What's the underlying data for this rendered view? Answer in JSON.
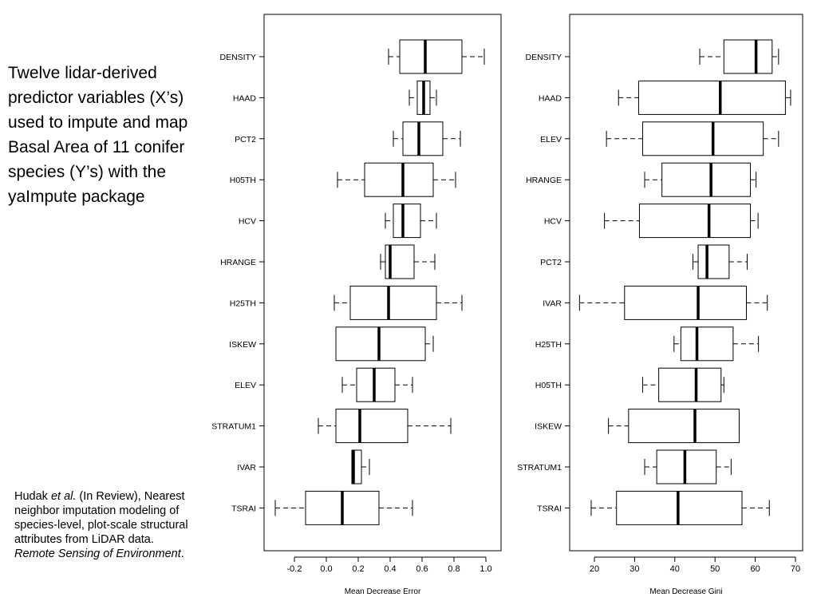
{
  "description": {
    "text": "Twelve lidar-derived predictor variables (X’s) used to impute and map Basal Area of 11 conifer species (Y’s) with the yaImpute package"
  },
  "citation": {
    "authors": "Hudak",
    "etal": "et al.",
    "status": " (In Review), Nearest neighbor imputation modeling of species-level, plot-scale structural attributes from LiDAR data.",
    "journal": "Remote Sensing of Environment",
    "end": "."
  },
  "chart_data": [
    {
      "type": "boxplot",
      "orientation": "horizontal",
      "xlabel": "Mean Decrease Error",
      "xlim": [
        -0.35,
        1.0
      ],
      "xticks": [
        "-0.2",
        "0.0",
        "0.2",
        "0.4",
        "0.6",
        "0.8",
        "1.0"
      ],
      "xtick_values": [
        -0.2,
        0.0,
        0.2,
        0.4,
        0.6,
        0.8,
        1.0
      ],
      "series": [
        {
          "label": "DENSITY",
          "min": 0.39,
          "q1": 0.46,
          "median": 0.62,
          "q3": 0.85,
          "max": 0.99
        },
        {
          "label": "HAAD",
          "min": 0.52,
          "q1": 0.57,
          "median": 0.61,
          "q3": 0.65,
          "max": 0.69
        },
        {
          "label": "PCT2",
          "min": 0.42,
          "q1": 0.48,
          "median": 0.58,
          "q3": 0.73,
          "max": 0.84
        },
        {
          "label": "H05TH",
          "min": 0.07,
          "q1": 0.24,
          "median": 0.48,
          "q3": 0.67,
          "max": 0.81
        },
        {
          "label": "HCV",
          "min": 0.37,
          "q1": 0.42,
          "median": 0.48,
          "q3": 0.59,
          "max": 0.69
        },
        {
          "label": "HRANGE",
          "min": 0.34,
          "q1": 0.37,
          "median": 0.4,
          "q3": 0.55,
          "max": 0.68
        },
        {
          "label": "H25TH",
          "min": 0.05,
          "q1": 0.15,
          "median": 0.39,
          "q3": 0.69,
          "max": 0.85
        },
        {
          "label": "ISKEW",
          "min": 0.06,
          "q1": 0.06,
          "median": 0.33,
          "q3": 0.62,
          "max": 0.67
        },
        {
          "label": "ELEV",
          "min": 0.1,
          "q1": 0.19,
          "median": 0.3,
          "q3": 0.43,
          "max": 0.54
        },
        {
          "label": "STRATUM1",
          "min": -0.05,
          "q1": 0.06,
          "median": 0.21,
          "q3": 0.51,
          "max": 0.78
        },
        {
          "label": "IVAR",
          "min": 0.16,
          "q1": 0.16,
          "median": 0.17,
          "q3": 0.22,
          "max": 0.27
        },
        {
          "label": "TSRAI",
          "min": -0.32,
          "q1": -0.13,
          "median": 0.1,
          "q3": 0.33,
          "max": 0.54
        }
      ]
    },
    {
      "type": "boxplot",
      "orientation": "horizontal",
      "xlabel": "Mean Decrease Gini",
      "xlim": [
        15,
        70
      ],
      "xticks": [
        "20",
        "30",
        "40",
        "50",
        "60",
        "70"
      ],
      "xtick_values": [
        20,
        30,
        40,
        50,
        60,
        70
      ],
      "series": [
        {
          "label": "DENSITY",
          "min": 46.2,
          "q1": 52.2,
          "median": 60.2,
          "q3": 64.2,
          "max": 65.8
        },
        {
          "label": "HAAD",
          "min": 26.0,
          "q1": 31.0,
          "median": 51.3,
          "q3": 67.5,
          "max": 68.8
        },
        {
          "label": "ELEV",
          "min": 23.0,
          "q1": 32.0,
          "median": 49.5,
          "q3": 62.0,
          "max": 65.8
        },
        {
          "label": "HRANGE",
          "min": 32.5,
          "q1": 36.8,
          "median": 49.0,
          "q3": 58.8,
          "max": 60.2
        },
        {
          "label": "HCV",
          "min": 22.5,
          "q1": 31.2,
          "median": 48.5,
          "q3": 58.8,
          "max": 60.7
        },
        {
          "label": "PCT2",
          "min": 44.5,
          "q1": 45.8,
          "median": 48.0,
          "q3": 53.5,
          "max": 58.0
        },
        {
          "label": "IVAR",
          "min": 16.3,
          "q1": 27.5,
          "median": 45.8,
          "q3": 57.8,
          "max": 63.0
        },
        {
          "label": "H25TH",
          "min": 39.8,
          "q1": 41.5,
          "median": 45.5,
          "q3": 54.5,
          "max": 60.8
        },
        {
          "label": "H05TH",
          "min": 32.0,
          "q1": 36.0,
          "median": 45.3,
          "q3": 51.5,
          "max": 52.2
        },
        {
          "label": "ISKEW",
          "min": 23.5,
          "q1": 28.5,
          "median": 45.0,
          "q3": 56.0,
          "max": 56.0
        },
        {
          "label": "STRATUM1",
          "min": 32.5,
          "q1": 35.5,
          "median": 42.5,
          "q3": 50.3,
          "max": 54.0
        },
        {
          "label": "TSRAI",
          "min": 19.2,
          "q1": 25.5,
          "median": 40.8,
          "q3": 56.7,
          "max": 63.5
        }
      ]
    }
  ]
}
